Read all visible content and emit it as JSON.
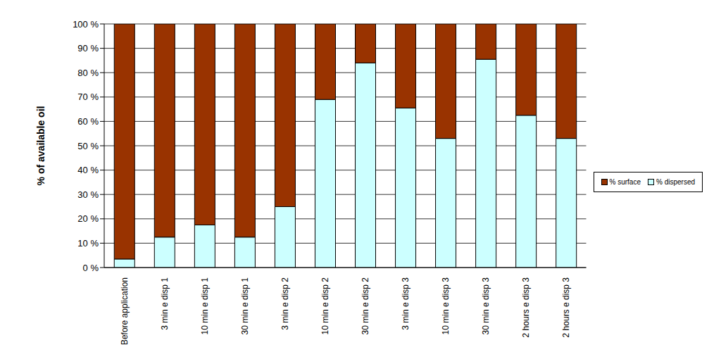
{
  "chart_data": {
    "type": "bar",
    "stacked": true,
    "grid": true,
    "legend": "right",
    "y_label": "% of available oil",
    "categories": [
      "Before application",
      "3 min e disp 1",
      "10 min e disp 1",
      "30 min e disp 1",
      "3 min e disp 2",
      "10 min e disp 2",
      "30 min e disp 2",
      "3 min e disp 3",
      "10 min e disp 3",
      "30 min e disp 3",
      "2 hours e disp 3",
      "2 hours e disp 3"
    ],
    "series": [
      {
        "name": "% surface",
        "color": "#993300",
        "values": [
          96.5,
          87.5,
          82.5,
          87.5,
          75,
          31,
          16,
          34.5,
          47,
          14.5,
          37.5,
          47
        ]
      },
      {
        "name": "% dispersed",
        "color": "#ccffff",
        "values": [
          3.5,
          12.5,
          17.5,
          12.5,
          25,
          69,
          84,
          65.5,
          53,
          85.5,
          62.5,
          53
        ]
      }
    ],
    "ylim": [
      0,
      100
    ],
    "yticks": [
      {
        "value": 0,
        "label": "0 %"
      },
      {
        "value": 10,
        "label": "10 %"
      },
      {
        "value": 20,
        "label": "20 %"
      },
      {
        "value": 30,
        "label": "30 %"
      },
      {
        "value": 40,
        "label": "40 %"
      },
      {
        "value": 50,
        "label": "50 %"
      },
      {
        "value": 60,
        "label": "60 %"
      },
      {
        "value": 70,
        "label": "70 %"
      },
      {
        "value": 80,
        "label": "80 %"
      },
      {
        "value": 90,
        "label": "90 %"
      },
      {
        "value": 100,
        "label": "100 %"
      }
    ]
  }
}
